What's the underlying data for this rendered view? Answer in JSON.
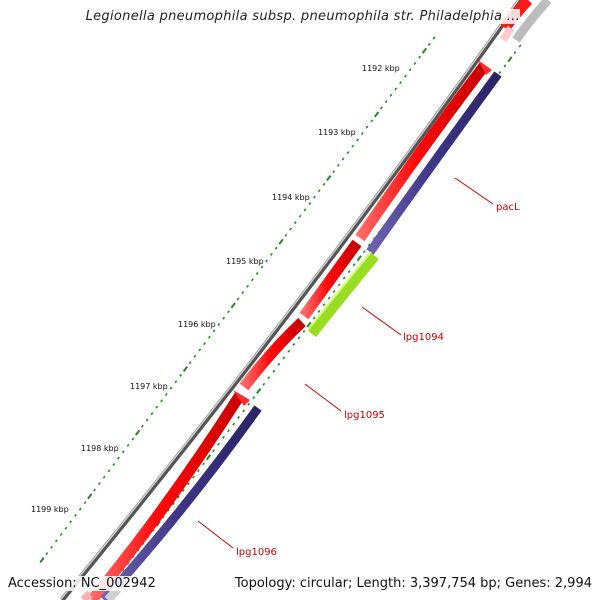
{
  "header": {
    "title": "Legionella pneumophila subsp. pneumophila str. Philadelphia ..."
  },
  "footer": {
    "accession": "Accession: NC_002942",
    "summary": "Topology: circular; Length: 3,397,754 bp; Genes: 2,994"
  },
  "tick_labels": [
    "1192 kbp",
    "1193 kbp",
    "1194 kbp",
    "1195 kbp",
    "1196 kbp",
    "1197 kbp",
    "1198 kbp",
    "1199 kbp"
  ],
  "gene_labels": [
    "pacL",
    "lpg1094",
    "lpg1095",
    "lpg1096"
  ],
  "colors": {
    "backbone": "#8a8a8a",
    "cds_forward": "#ff1a1a",
    "cds_reverse": "#3d3585",
    "highlight": "#99dd22",
    "tick": "#1f8a1f",
    "label": "#cc0000"
  }
}
